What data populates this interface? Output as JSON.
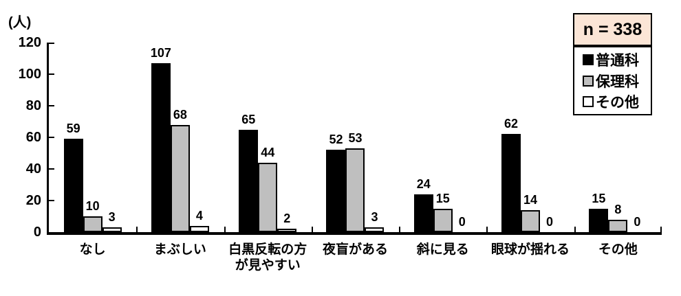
{
  "chart_data": {
    "type": "bar",
    "title": "",
    "unit_label": "(人)",
    "n_label": "n = 338",
    "categories": [
      "なし",
      "まぶしい",
      "白黒反転の方\nが見やすい",
      "夜盲がある",
      "斜に見る",
      "眼球が揺れる",
      "その他"
    ],
    "series": [
      {
        "name": "普通科",
        "fill": "#000000",
        "border": "#000000",
        "values": [
          59,
          107,
          65,
          52,
          24,
          62,
          15
        ]
      },
      {
        "name": "保理科",
        "fill": "#BFBFBF",
        "border": "#000000",
        "values": [
          10,
          68,
          44,
          53,
          15,
          14,
          8
        ]
      },
      {
        "name": "その他",
        "fill": "#FFFFFF",
        "border": "#000000",
        "values": [
          3,
          4,
          2,
          3,
          0,
          0,
          0
        ]
      }
    ],
    "xlabel": "",
    "ylabel": "(人)",
    "ylim": [
      0,
      120
    ],
    "yticks": [
      0,
      20,
      40,
      60,
      80,
      100,
      120
    ],
    "grid": false,
    "legend_position": "top-right",
    "colors": {
      "n_box_bg": "#FBE5D6",
      "axis": "#000000",
      "text": "#000000"
    }
  }
}
